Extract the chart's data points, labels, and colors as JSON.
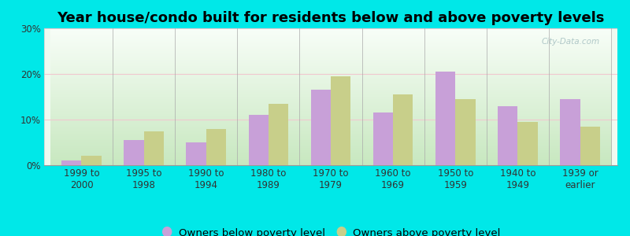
{
  "title": "Year house/condo built for residents below and above poverty levels",
  "categories": [
    "1999 to\n2000",
    "1995 to\n1998",
    "1990 to\n1994",
    "1980 to\n1989",
    "1970 to\n1979",
    "1960 to\n1969",
    "1950 to\n1959",
    "1940 to\n1949",
    "1939 or\nearlier"
  ],
  "below_poverty": [
    1.0,
    5.5,
    5.0,
    11.0,
    16.5,
    11.5,
    20.5,
    13.0,
    14.5
  ],
  "above_poverty": [
    2.0,
    7.5,
    8.0,
    13.5,
    19.5,
    15.5,
    14.5,
    9.5,
    8.5
  ],
  "below_color": "#c8a0d8",
  "above_color": "#c8cf8a",
  "bg_color_top": "#cce8c8",
  "bg_color_bottom": "#f0faf0",
  "outer_bg": "#00e8e8",
  "grid_color": "#f0c8d0",
  "ylim": [
    0,
    30
  ],
  "yticks": [
    0,
    10,
    20,
    30
  ],
  "ytick_labels": [
    "0%",
    "10%",
    "20%",
    "30%"
  ],
  "legend_below": "Owners below poverty level",
  "legend_above": "Owners above poverty level",
  "title_fontsize": 13,
  "tick_fontsize": 8.5,
  "legend_fontsize": 9.5,
  "bar_width": 0.32,
  "watermark": "City-Data.com"
}
